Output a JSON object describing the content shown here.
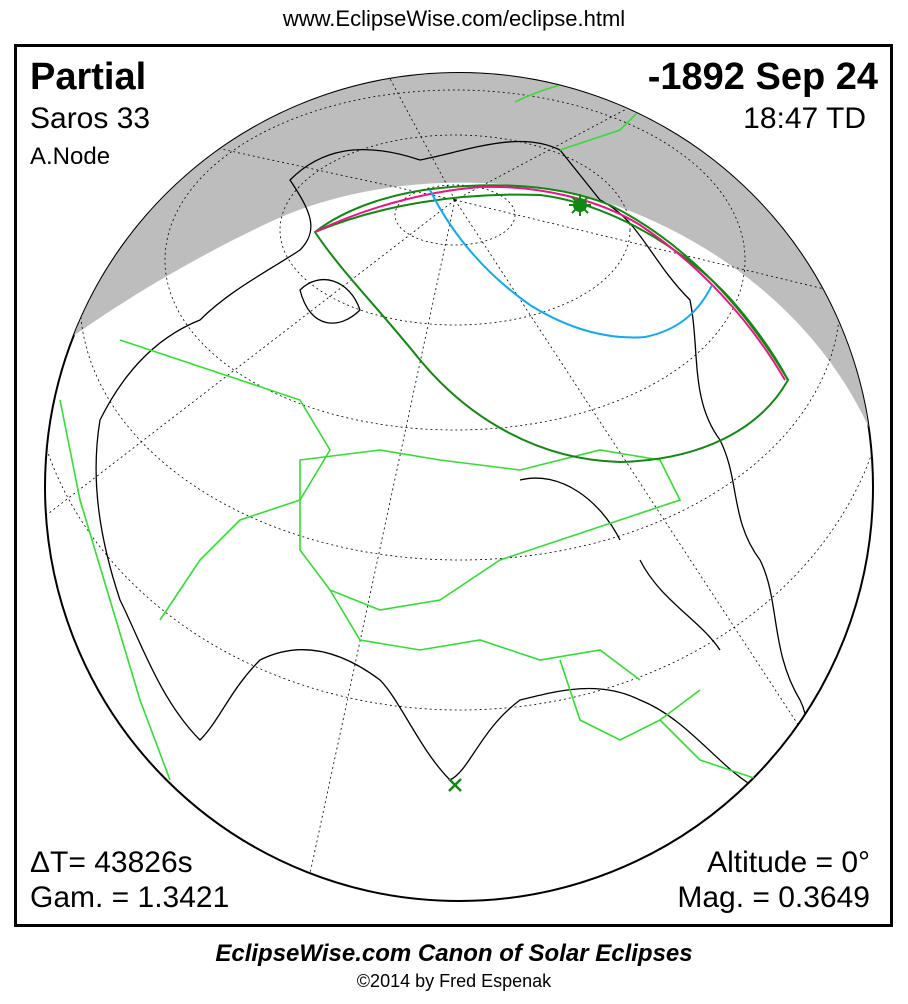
{
  "header": {
    "url": "www.EclipseWise.com/eclipse.html"
  },
  "eclipse": {
    "type": "Partial",
    "date": "-1892 Sep 24",
    "saros": "Saros  33",
    "time": "18:47 TD",
    "node": "A.Node",
    "delta_t": "ΔT=  43826s",
    "gamma": "Gam. = 1.3421",
    "altitude": "Altitude =  0°",
    "magnitude": "Mag. = 0.3649"
  },
  "footer": {
    "canon": "EclipseWise.com Canon of Solar Eclipses",
    "copyright": "©2014 by Fred Espenak"
  },
  "colors": {
    "night": "#bdbdbd",
    "borders": "#33dd33",
    "eclipse_limits": "#118811",
    "max_curve": "#ee1188",
    "mid_curve": "#11aaee",
    "coastline": "#000000"
  },
  "markers": {
    "greatest_eclipse": "star-icon",
    "subsolar_point": "x-icon"
  }
}
